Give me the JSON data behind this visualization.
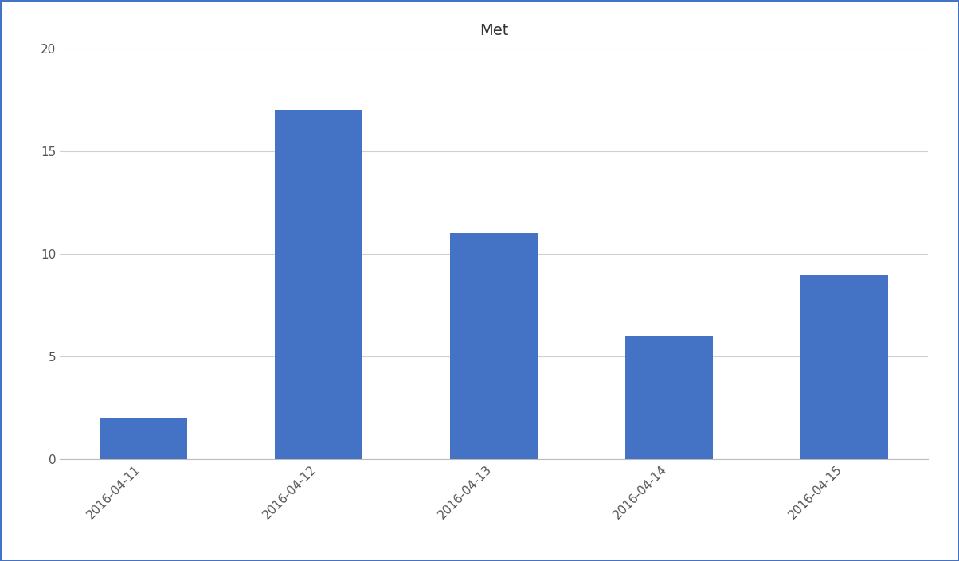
{
  "title": "Met",
  "categories": [
    "2016-04-11",
    "2016-04-12",
    "2016-04-13",
    "2016-04-14",
    "2016-04-15"
  ],
  "values": [
    2,
    17,
    11,
    6,
    9
  ],
  "bar_color": "#4472C4",
  "ylim": [
    0,
    20
  ],
  "yticks": [
    0,
    5,
    10,
    15,
    20
  ],
  "background_color": "#ffffff",
  "border_color": "#4472C4",
  "title_fontsize": 14,
  "tick_fontsize": 11,
  "grid_color": "#d0d0d0",
  "bar_width": 0.5
}
